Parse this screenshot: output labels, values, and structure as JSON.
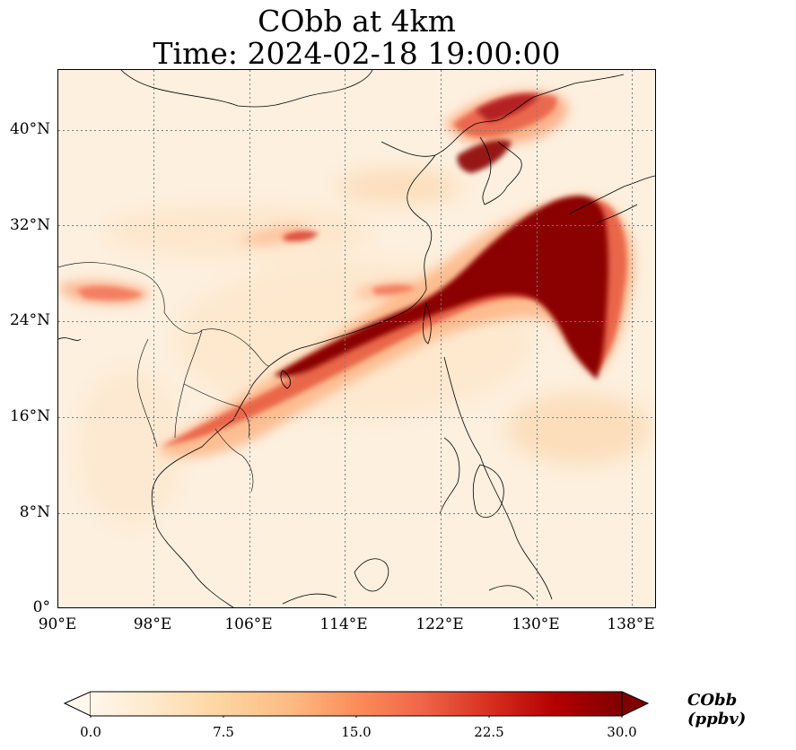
{
  "title_line1": "CObb at 4km",
  "title_line2": "Time: 2024-02-18 19:00:00",
  "map": {
    "projection": "PlateCarree",
    "lon_range": [
      90,
      140
    ],
    "lat_range": [
      0,
      45
    ],
    "lon_ticks": [
      "90°E",
      "98°E",
      "106°E",
      "114°E",
      "122°E",
      "130°E",
      "138°E"
    ],
    "lat_ticks": [
      "0°",
      "8°N",
      "16°N",
      "24°N",
      "32°N",
      "40°N"
    ],
    "gridlines": "dotted",
    "features": [
      "coastlines",
      "country borders"
    ],
    "field": "CObb concentration at 4 km altitude",
    "plume_description": "high CObb band from Southeast Asia across South China coast to East China Sea, Korea and Japan"
  },
  "colorbar": {
    "label": "CObb (ppbv)",
    "ticks": [
      "0.0",
      "7.5",
      "15.0",
      "22.5",
      "30.0"
    ],
    "min": 0,
    "max": 30,
    "extend": "both",
    "colormap": "OrRd",
    "colors": [
      "#fff7ec",
      "#fee8c8",
      "#fdd49e",
      "#fdbb84",
      "#fc8d59",
      "#ef6548",
      "#d7301f",
      "#b30000",
      "#7f0000"
    ]
  }
}
